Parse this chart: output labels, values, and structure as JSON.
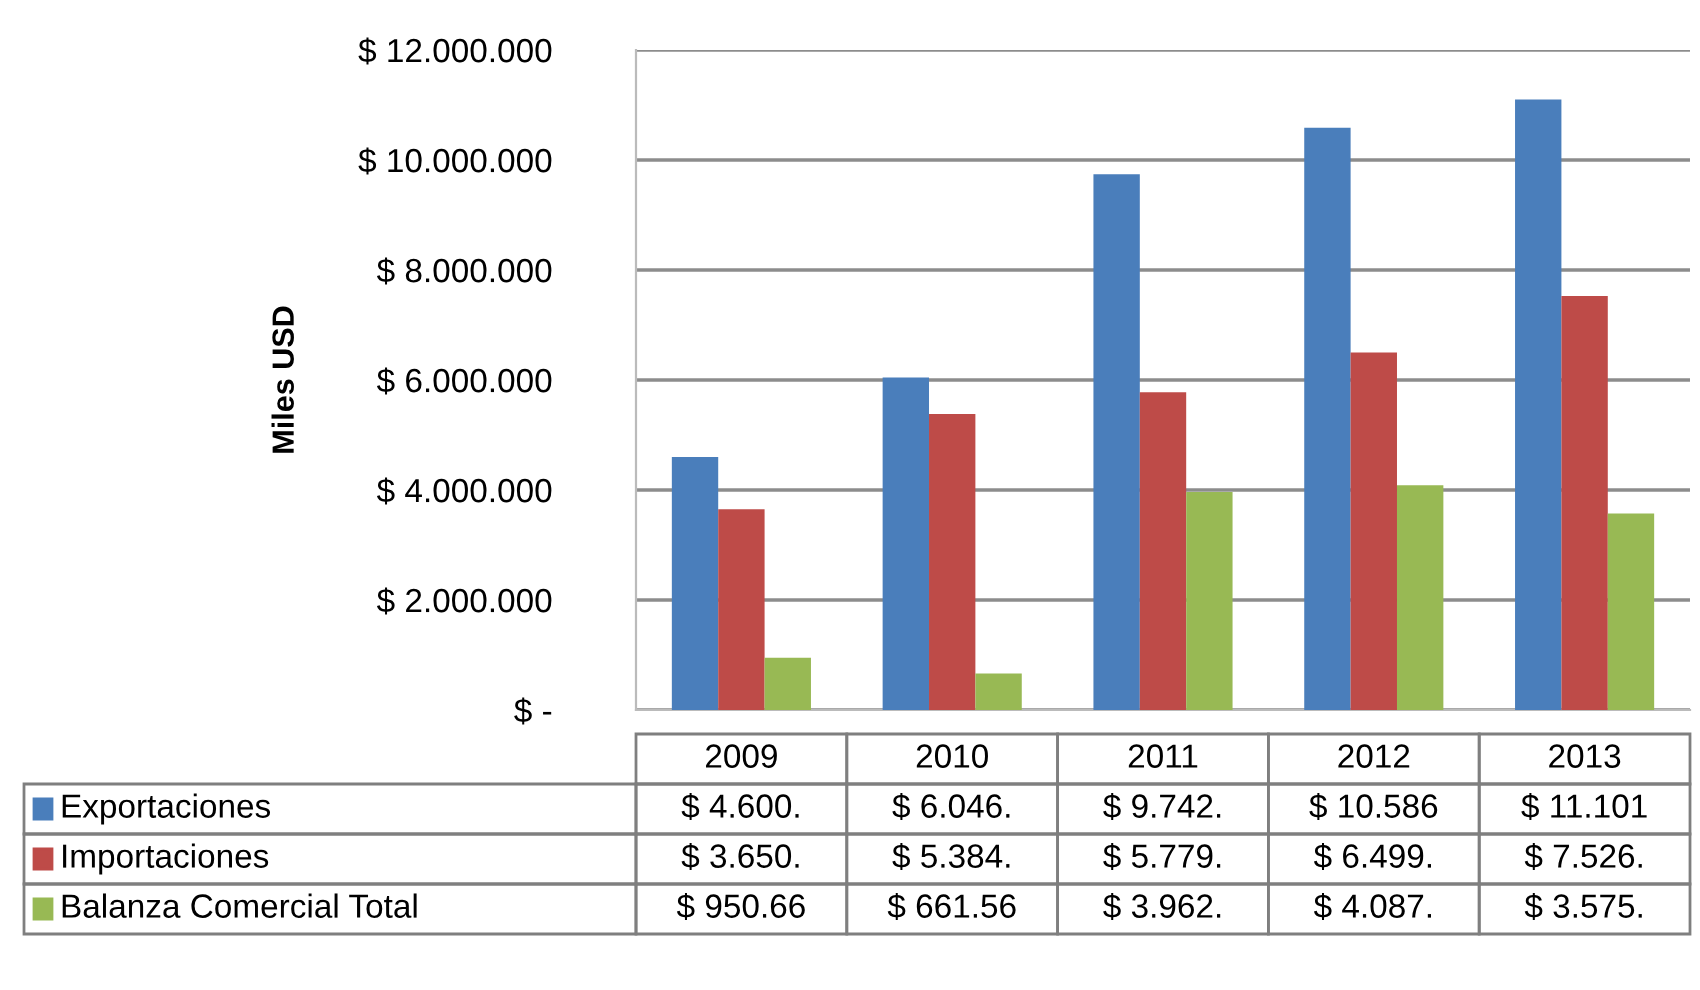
{
  "chart_data": {
    "type": "bar",
    "ylabel": "Miles USD",
    "categories": [
      "2009",
      "2010",
      "2011",
      "2012",
      "2013"
    ],
    "series": [
      {
        "name": "Exportaciones",
        "color": "#4a7ebb",
        "values": [
          4600000,
          6046000,
          9742000,
          10586000,
          11101000
        ]
      },
      {
        "name": "Importaciones",
        "color": "#be4b48",
        "values": [
          3650000,
          5384000,
          5779000,
          6499000,
          7526000
        ]
      },
      {
        "name": "Balanza Comercial Total",
        "color": "#98b954",
        "values": [
          950660,
          661560,
          3962000,
          4087000,
          3575000
        ]
      }
    ],
    "annotations": [
      "$ 4.600.",
      "$ 6.046.",
      "$ 9.742.",
      "$ 10.586",
      "$ 11.101",
      "$ 3.650.",
      "$ 5.384.",
      "$ 5.779.",
      "$ 6.499.",
      "$ 7.526.",
      "$ 950.66",
      "$ 661.56",
      "$ 3.962.",
      "$ 4.087.",
      "$ 3.575."
    ],
    "ylim": [
      0,
      12000000
    ],
    "yticks": [
      {
        "value": 0,
        "label": "$ -"
      },
      {
        "value": 2000000,
        "label": "$ 2.000.000"
      },
      {
        "value": 4000000,
        "label": "$ 4.000.000"
      },
      {
        "value": 6000000,
        "label": "$ 6.000.000"
      },
      {
        "value": 8000000,
        "label": "$ 8.000.000"
      },
      {
        "value": 10000000,
        "label": "$ 10.000.000"
      },
      {
        "value": 12000000,
        "label": "$ 12.000.000"
      }
    ],
    "grid": "y",
    "legend": "bottom"
  }
}
